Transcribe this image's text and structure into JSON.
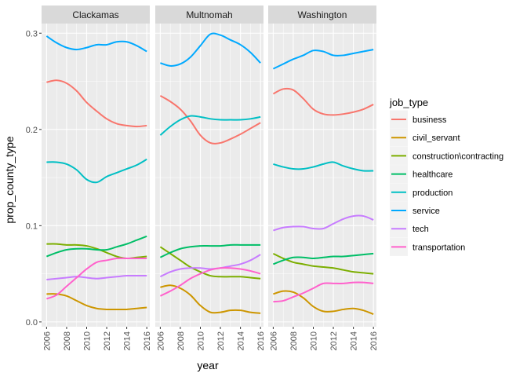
{
  "chart_data": {
    "type": "line",
    "xlabel": "year",
    "ylabel": "prop_county_type",
    "xlim": [
      2005.5,
      2016.3
    ],
    "ylim": [
      -0.005,
      0.31
    ],
    "x_ticks": [
      2006,
      2008,
      2010,
      2012,
      2014,
      2016
    ],
    "y_ticks": [
      0.0,
      0.1,
      0.2,
      0.3
    ],
    "y_tick_labels": [
      "0.0",
      "0.1",
      "0.2",
      "0.3"
    ],
    "grid": true,
    "legend": {
      "title": "job_type",
      "position": "right"
    },
    "series_styles": [
      {
        "key": "business",
        "label": "business",
        "color": "#F8766D"
      },
      {
        "key": "civil_servant",
        "label": "civil_servant",
        "color": "#CD9600"
      },
      {
        "key": "construction",
        "label": "construction\\contracting",
        "color": "#7CAE00"
      },
      {
        "key": "healthcare",
        "label": "healthcare",
        "color": "#00BE67"
      },
      {
        "key": "production",
        "label": "production",
        "color": "#00BFC4"
      },
      {
        "key": "service",
        "label": "service",
        "color": "#00A9FF"
      },
      {
        "key": "tech",
        "label": "tech",
        "color": "#C77CFF"
      },
      {
        "key": "transportation",
        "label": "transportation",
        "color": "#FF61CC"
      }
    ],
    "x": [
      2006,
      2007,
      2008,
      2009,
      2010,
      2011,
      2012,
      2013,
      2014,
      2015,
      2016
    ],
    "panels": [
      {
        "name": "Clackamas",
        "series": {
          "business": [
            0.249,
            0.251,
            0.248,
            0.24,
            0.228,
            0.219,
            0.211,
            0.206,
            0.204,
            0.203,
            0.204
          ],
          "civil_servant": [
            0.029,
            0.029,
            0.027,
            0.022,
            0.017,
            0.014,
            0.013,
            0.013,
            0.013,
            0.014,
            0.015
          ],
          "construction": [
            0.081,
            0.081,
            0.08,
            0.08,
            0.079,
            0.076,
            0.072,
            0.068,
            0.066,
            0.067,
            0.068
          ],
          "healthcare": [
            0.068,
            0.072,
            0.075,
            0.076,
            0.076,
            0.075,
            0.075,
            0.078,
            0.081,
            0.085,
            0.089
          ],
          "production": [
            0.166,
            0.166,
            0.164,
            0.158,
            0.148,
            0.145,
            0.151,
            0.155,
            0.159,
            0.163,
            0.169
          ],
          "service": [
            0.297,
            0.29,
            0.285,
            0.283,
            0.285,
            0.288,
            0.288,
            0.291,
            0.291,
            0.287,
            0.281
          ],
          "tech": [
            0.044,
            0.045,
            0.046,
            0.047,
            0.046,
            0.045,
            0.046,
            0.047,
            0.048,
            0.048,
            0.048
          ],
          "transportation": [
            0.024,
            0.028,
            0.037,
            0.046,
            0.055,
            0.062,
            0.064,
            0.066,
            0.066,
            0.066,
            0.066
          ]
        }
      },
      {
        "name": "Multnomah",
        "series": {
          "business": [
            0.235,
            0.229,
            0.221,
            0.209,
            0.194,
            0.186,
            0.186,
            0.19,
            0.195,
            0.201,
            0.207
          ],
          "civil_servant": [
            0.036,
            0.038,
            0.035,
            0.028,
            0.017,
            0.01,
            0.01,
            0.012,
            0.012,
            0.01,
            0.009
          ],
          "construction": [
            0.078,
            0.071,
            0.064,
            0.057,
            0.052,
            0.048,
            0.047,
            0.047,
            0.047,
            0.046,
            0.045
          ],
          "healthcare": [
            0.067,
            0.072,
            0.076,
            0.078,
            0.079,
            0.079,
            0.079,
            0.08,
            0.08,
            0.08,
            0.08
          ],
          "production": [
            0.194,
            0.203,
            0.21,
            0.214,
            0.213,
            0.211,
            0.21,
            0.21,
            0.21,
            0.211,
            0.213
          ],
          "service": [
            0.269,
            0.266,
            0.268,
            0.275,
            0.287,
            0.299,
            0.298,
            0.293,
            0.288,
            0.28,
            0.269
          ],
          "tech": [
            0.047,
            0.052,
            0.055,
            0.056,
            0.056,
            0.055,
            0.056,
            0.058,
            0.06,
            0.064,
            0.07
          ],
          "transportation": [
            0.027,
            0.032,
            0.038,
            0.045,
            0.05,
            0.054,
            0.056,
            0.056,
            0.055,
            0.053,
            0.05
          ]
        }
      },
      {
        "name": "Washington",
        "series": {
          "business": [
            0.237,
            0.242,
            0.241,
            0.232,
            0.221,
            0.216,
            0.215,
            0.216,
            0.218,
            0.221,
            0.226
          ],
          "civil_servant": [
            0.029,
            0.032,
            0.031,
            0.025,
            0.016,
            0.011,
            0.011,
            0.013,
            0.014,
            0.012,
            0.008
          ],
          "construction": [
            0.071,
            0.066,
            0.062,
            0.06,
            0.058,
            0.057,
            0.056,
            0.054,
            0.052,
            0.051,
            0.05
          ],
          "healthcare": [
            0.06,
            0.064,
            0.067,
            0.067,
            0.066,
            0.067,
            0.068,
            0.068,
            0.069,
            0.07,
            0.071
          ],
          "production": [
            0.164,
            0.161,
            0.159,
            0.159,
            0.161,
            0.164,
            0.166,
            0.162,
            0.159,
            0.157,
            0.157
          ],
          "service": [
            0.263,
            0.268,
            0.273,
            0.277,
            0.282,
            0.281,
            0.277,
            0.277,
            0.279,
            0.281,
            0.283
          ],
          "tech": [
            0.095,
            0.098,
            0.099,
            0.099,
            0.097,
            0.097,
            0.102,
            0.107,
            0.11,
            0.11,
            0.106
          ],
          "transportation": [
            0.021,
            0.022,
            0.026,
            0.03,
            0.035,
            0.04,
            0.04,
            0.04,
            0.041,
            0.041,
            0.04
          ]
        }
      }
    ]
  }
}
